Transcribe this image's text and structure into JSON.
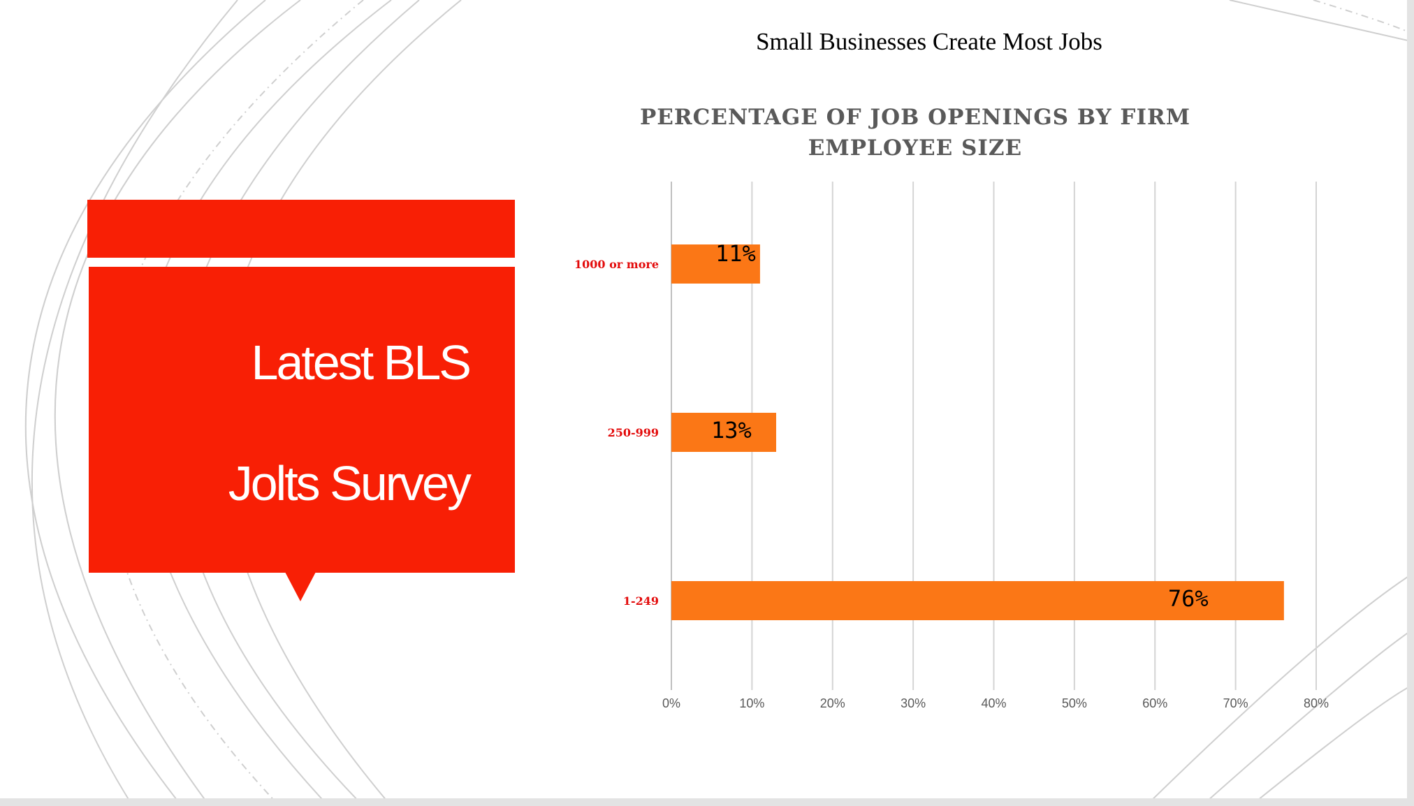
{
  "slide": {
    "heading_lines": [
      "Latest BLS",
      "Jolts Survey"
    ],
    "subtitle": "Small Businesses Create Most Jobs",
    "accent_color": "#f81f05"
  },
  "chart_data": {
    "type": "bar",
    "orientation": "horizontal",
    "title": "PERCENTAGE OF JOB OPENINGS BY FIRM EMPLOYEE SIZE",
    "categories": [
      "1000 or more",
      "250-999",
      "1-249"
    ],
    "values": [
      11,
      13,
      76
    ],
    "data_labels": [
      "11%",
      "13%",
      "76%"
    ],
    "xlim": [
      0,
      80
    ],
    "xticks": [
      "0%",
      "10%",
      "20%",
      "30%",
      "40%",
      "50%",
      "60%",
      "70%",
      "80%"
    ],
    "grid": true,
    "bar_color": "#fb7716",
    "category_label_color": "#e30b0b",
    "xlabel": "",
    "ylabel": ""
  }
}
